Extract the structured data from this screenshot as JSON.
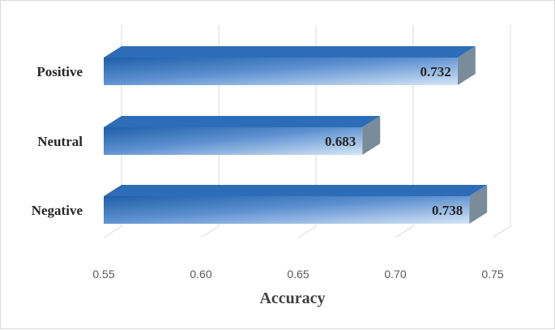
{
  "chart_data": {
    "type": "bar",
    "orientation": "horizontal",
    "style": "3d",
    "categories": [
      "Positive",
      "Neutral",
      "Negative"
    ],
    "values": [
      0.732,
      0.683,
      0.738
    ],
    "data_labels": [
      "0.732",
      "0.683",
      "0.738"
    ],
    "xlabel": "Accuracy",
    "ylabel": "",
    "xlim": [
      0.55,
      0.75
    ],
    "x_ticks": [
      "0.55",
      "0.60",
      "0.65",
      "0.70",
      "0.75"
    ],
    "grid": "vertical",
    "legend": "none",
    "colors": {
      "bar_dark": "#1f5fa8",
      "bar_mid": "#5b8fd0",
      "bar_light": "#d6e6f6",
      "bar_top": "#2d6db8",
      "bar_side": "#7a8b99",
      "grid": "#d9d9d9"
    }
  }
}
